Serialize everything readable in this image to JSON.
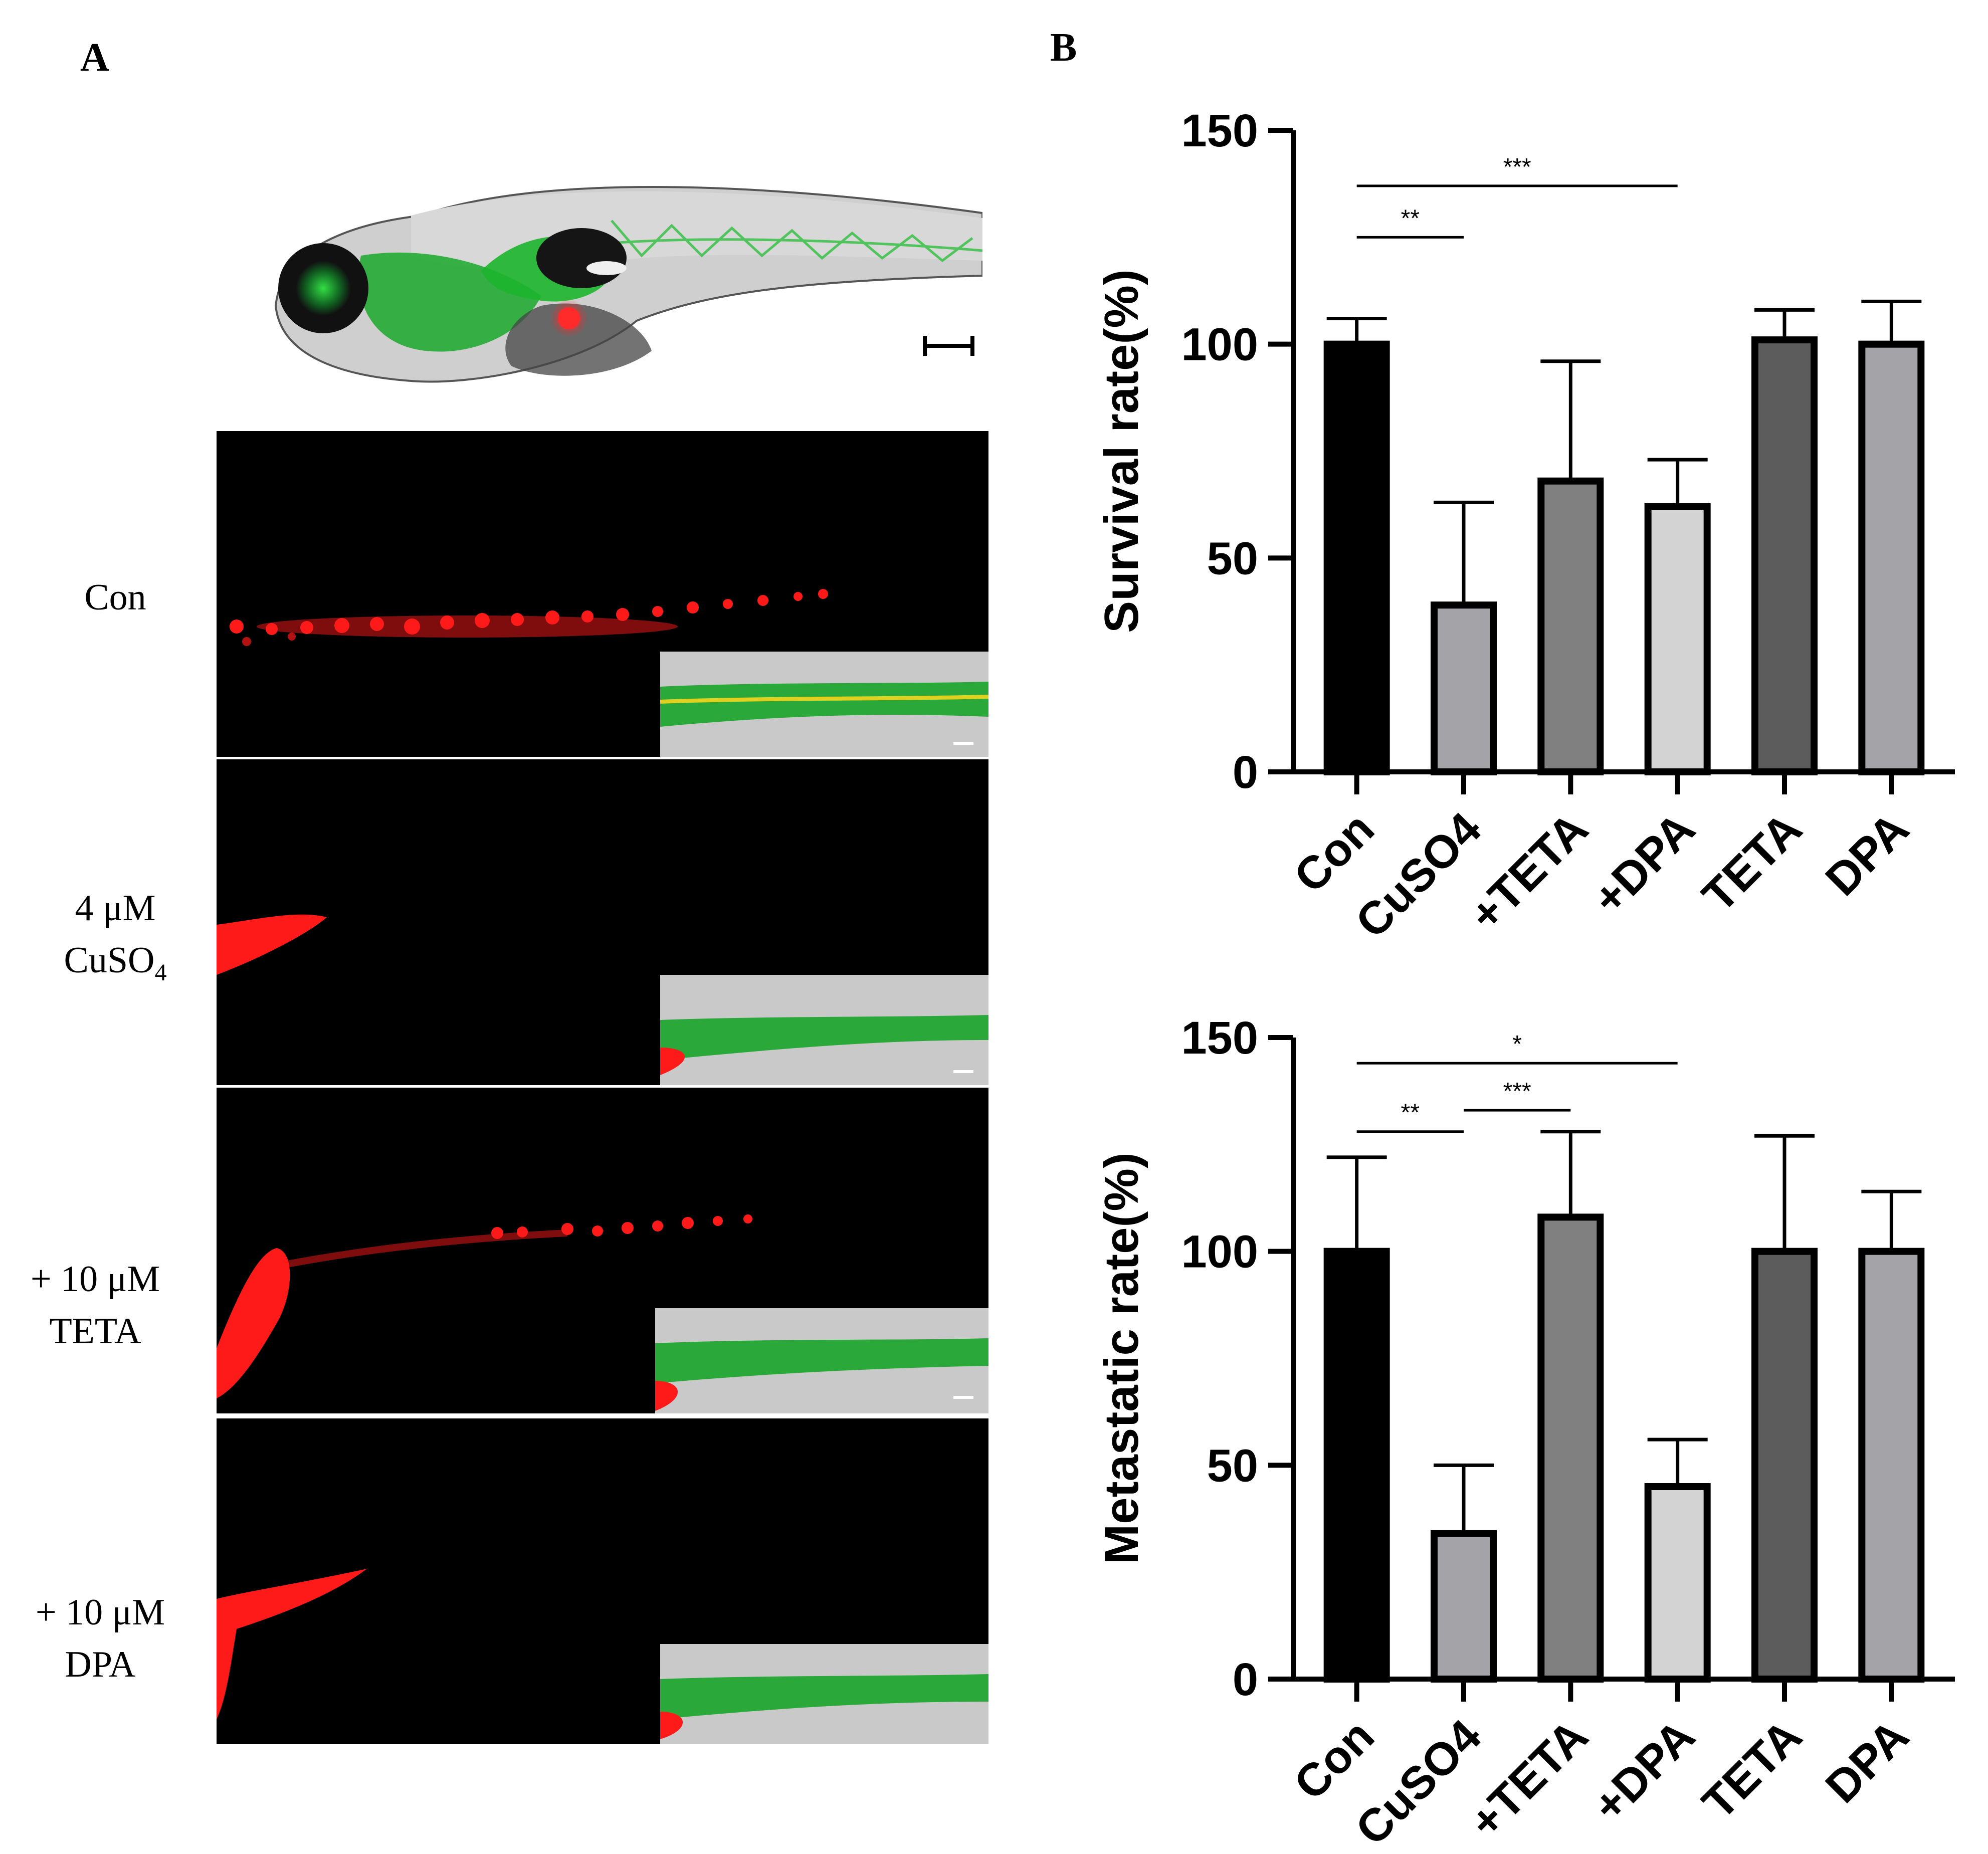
{
  "panel_labels": {
    "a": "A",
    "b": "B"
  },
  "rows": [
    {
      "line1": "Con",
      "line2": "",
      "sub": ""
    },
    {
      "line1": "4 μM",
      "line2": "CuSO",
      "sub": "4"
    },
    {
      "line1": "+ 10 μM",
      "line2": "TETA",
      "sub": ""
    },
    {
      "line1": "+ 10 μM",
      "line2": "DPA",
      "sub": ""
    }
  ],
  "colors": {
    "red": "#ff1a1a",
    "green": "#22cc33",
    "black": "#000000"
  },
  "chart_data": [
    {
      "type": "bar",
      "title": "",
      "xlabel": "",
      "ylabel": "Survival rate(%)",
      "categories": [
        "Con",
        "CuSO4",
        "+TETA",
        "+DPA",
        "TETA",
        "DPA"
      ],
      "values": [
        100,
        39,
        68,
        62,
        101,
        100
      ],
      "errors": [
        6,
        24,
        28,
        11,
        7,
        10
      ],
      "bar_colors": [
        "#000000",
        "#a3a3a8",
        "#808080",
        "#d3d3d3",
        "#5c5c5c",
        "#a3a3a8"
      ],
      "ylim": [
        0,
        150
      ],
      "yticks": [
        0,
        50,
        100,
        150
      ],
      "significance": [
        {
          "from": 0,
          "to": 3,
          "label": "***",
          "y": 137
        },
        {
          "from": 0,
          "to": 1,
          "label": "**",
          "y": 125
        }
      ]
    },
    {
      "type": "bar",
      "title": "",
      "xlabel": "",
      "ylabel": "Metastatic rate(%)",
      "categories": [
        "Con",
        "CuSO4",
        "+TETA",
        "+DPA",
        "TETA",
        "DPA"
      ],
      "values": [
        100,
        34,
        108,
        45,
        100,
        100
      ],
      "errors": [
        22,
        16,
        20,
        11,
        27,
        14
      ],
      "bar_colors": [
        "#000000",
        "#a3a3a8",
        "#808080",
        "#d3d3d3",
        "#5c5c5c",
        "#a3a3a8"
      ],
      "ylim": [
        0,
        150
      ],
      "yticks": [
        0,
        50,
        100,
        150
      ],
      "significance": [
        {
          "from": 0,
          "to": 3,
          "label": "*",
          "y": 144
        },
        {
          "from": 0,
          "to": 1,
          "label": "**",
          "y": 128
        },
        {
          "from": 1,
          "to": 2,
          "label": "***",
          "y": 133
        }
      ]
    }
  ]
}
